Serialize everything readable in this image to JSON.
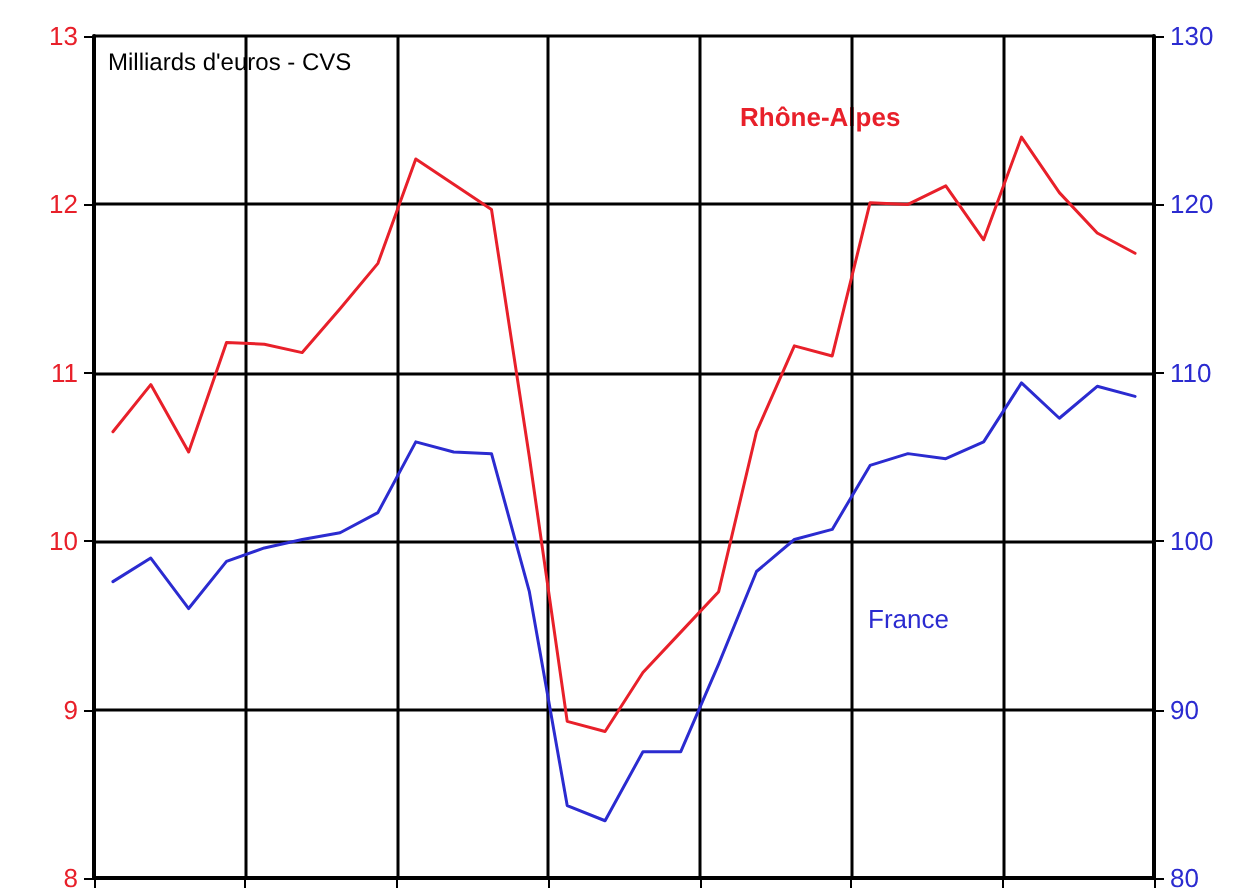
{
  "chart_data": {
    "type": "line",
    "ylabel": "Milliards d'euros - CVS",
    "categories": [
      null,
      null,
      null,
      null,
      null,
      null,
      null,
      null,
      null,
      null,
      null,
      null,
      null,
      null,
      null,
      null,
      null,
      null,
      null,
      null,
      null,
      null,
      null,
      null,
      null,
      null,
      null,
      null
    ],
    "series": [
      {
        "name": "Rhône-Alpes",
        "color": "#e8202a",
        "values": [
          10.65,
          10.93,
          10.53,
          11.18,
          11.17,
          11.12,
          11.38,
          11.65,
          12.27,
          12.12,
          11.97,
          10.5,
          8.93,
          8.87,
          9.22,
          9.46,
          9.7,
          10.65,
          11.16,
          11.1,
          12.01,
          12.0,
          12.11,
          11.79,
          12.4,
          12.07,
          11.83,
          11.71
        ]
      },
      {
        "name": "France",
        "color": "#2b2bd0",
        "axis": "y2",
        "values": [
          97.6,
          99.0,
          96.0,
          98.8,
          99.6,
          100.1,
          100.5,
          101.7,
          105.9,
          105.3,
          105.2,
          97,
          84.3,
          83.4,
          87.5,
          87.5,
          92.7,
          98.2,
          100.1,
          100.7,
          104.5,
          105.2,
          104.9,
          105.9,
          109.4,
          107.3,
          109.2,
          108.6
        ]
      }
    ],
    "ylim": [
      8,
      13
    ],
    "yticks": [
      8,
      9,
      10,
      11,
      12,
      13
    ],
    "y2lim": [
      80,
      130
    ],
    "y2ticks": [
      80,
      90,
      100,
      110,
      120,
      130
    ],
    "tick_labels": "y",
    "grid": true,
    "legend": false,
    "marker": "none",
    "line_style": "solid"
  }
}
